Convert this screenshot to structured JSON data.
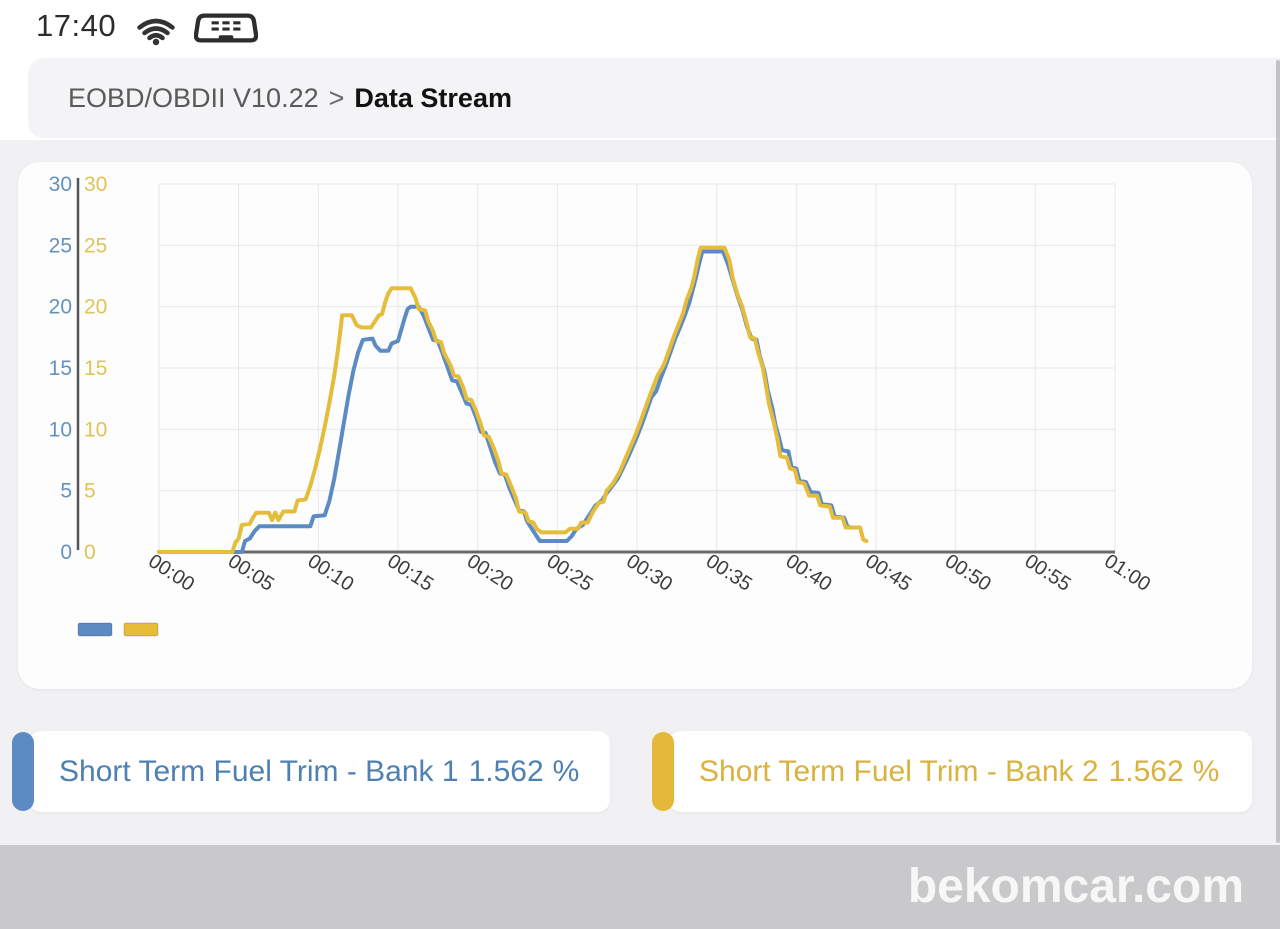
{
  "status_bar": {
    "time": "17:40",
    "icons": [
      "wifi-icon",
      "obd-connector-icon"
    ]
  },
  "breadcrumb": {
    "path": "EOBD/OBDII V10.22",
    "separator": ">",
    "current": "Data Stream"
  },
  "chart_data": {
    "type": "line",
    "title": "",
    "x_axis": {
      "unit": "mm:ss",
      "tick_labels": [
        "00:00",
        "00:05",
        "00:10",
        "00:15",
        "00:20",
        "00:25",
        "00:30",
        "00:35",
        "00:40",
        "00:45",
        "00:50",
        "00:55",
        "01:00"
      ],
      "tick_seconds": [
        0,
        5,
        10,
        15,
        20,
        25,
        30,
        35,
        40,
        45,
        50,
        55,
        60
      ],
      "max_seconds": 60,
      "label_rotation_deg": 33,
      "label_color": "#3c3c3c"
    },
    "y_axis": {
      "min": 0,
      "max": 30,
      "ticks": [
        0,
        5,
        10,
        15,
        20,
        25,
        30
      ],
      "dual_labels": true,
      "left_label_color": "#6292bd",
      "right_label_color": "#dfc455"
    },
    "grid": {
      "show": true,
      "color": "#e8e8eb"
    },
    "axis_line_color": "#6a6a6a",
    "legend": {
      "position": "bottom-left"
    },
    "series": [
      {
        "name": "Short Term Fuel Trim - Bank 1",
        "color": "#5b8bc2",
        "points": [
          [
            0,
            0
          ],
          [
            5.2,
            0
          ],
          [
            5.4,
            0.9
          ],
          [
            5.7,
            1.1
          ],
          [
            6.0,
            1.7
          ],
          [
            6.3,
            2.1
          ],
          [
            9.5,
            2.1
          ],
          [
            9.7,
            2.9
          ],
          [
            10.4,
            3.0
          ],
          [
            10.7,
            4.2
          ],
          [
            11.0,
            6.0
          ],
          [
            11.3,
            8.2
          ],
          [
            11.6,
            10.5
          ],
          [
            11.9,
            12.8
          ],
          [
            12.2,
            14.8
          ],
          [
            12.5,
            16.3
          ],
          [
            12.8,
            17.3
          ],
          [
            13.4,
            17.4
          ],
          [
            13.6,
            16.8
          ],
          [
            13.9,
            16.4
          ],
          [
            14.4,
            16.4
          ],
          [
            14.6,
            17.0
          ],
          [
            15.0,
            17.2
          ],
          [
            15.2,
            18.1
          ],
          [
            15.4,
            19.0
          ],
          [
            15.6,
            19.8
          ],
          [
            15.8,
            20.0
          ],
          [
            16.3,
            20.0
          ],
          [
            16.6,
            19.3
          ],
          [
            16.9,
            18.3
          ],
          [
            17.2,
            17.3
          ],
          [
            17.5,
            17.2
          ],
          [
            17.8,
            16.2
          ],
          [
            18.1,
            15.1
          ],
          [
            18.4,
            14.0
          ],
          [
            18.7,
            13.9
          ],
          [
            19.0,
            13.0
          ],
          [
            19.3,
            12.1
          ],
          [
            19.6,
            12.0
          ],
          [
            19.9,
            11.0
          ],
          [
            20.2,
            9.8
          ],
          [
            20.5,
            9.7
          ],
          [
            20.8,
            8.5
          ],
          [
            21.1,
            7.3
          ],
          [
            21.4,
            6.4
          ],
          [
            21.7,
            6.3
          ],
          [
            22.0,
            5.2
          ],
          [
            22.3,
            4.3
          ],
          [
            22.6,
            3.4
          ],
          [
            22.9,
            3.3
          ],
          [
            23.1,
            2.5
          ],
          [
            23.4,
            1.9
          ],
          [
            23.7,
            1.3
          ],
          [
            23.9,
            0.9
          ],
          [
            25.6,
            0.9
          ],
          [
            25.9,
            1.3
          ],
          [
            26.2,
            1.9
          ],
          [
            26.6,
            2.2
          ],
          [
            27.0,
            3.0
          ],
          [
            27.4,
            3.8
          ],
          [
            27.8,
            4.2
          ],
          [
            28.1,
            4.8
          ],
          [
            28.4,
            5.3
          ],
          [
            28.8,
            6.0
          ],
          [
            29.1,
            6.8
          ],
          [
            29.4,
            7.6
          ],
          [
            29.7,
            8.5
          ],
          [
            30.0,
            9.4
          ],
          [
            30.3,
            10.4
          ],
          [
            30.6,
            11.5
          ],
          [
            30.9,
            12.6
          ],
          [
            31.2,
            13.1
          ],
          [
            31.5,
            14.2
          ],
          [
            31.8,
            15.2
          ],
          [
            32.1,
            16.3
          ],
          [
            32.4,
            17.4
          ],
          [
            32.7,
            18.3
          ],
          [
            33.0,
            19.3
          ],
          [
            33.3,
            20.4
          ],
          [
            33.5,
            21.4
          ],
          [
            33.7,
            22.4
          ],
          [
            33.9,
            23.5
          ],
          [
            34.1,
            24.5
          ],
          [
            35.4,
            24.5
          ],
          [
            35.7,
            23.5
          ],
          [
            36.0,
            22.2
          ],
          [
            36.3,
            20.9
          ],
          [
            36.6,
            19.8
          ],
          [
            36.9,
            18.4
          ],
          [
            37.2,
            17.4
          ],
          [
            37.5,
            17.3
          ],
          [
            37.7,
            16.0
          ],
          [
            38.0,
            14.7
          ],
          [
            38.2,
            13.2
          ],
          [
            38.5,
            11.7
          ],
          [
            38.7,
            10.3
          ],
          [
            38.9,
            9.4
          ],
          [
            39.1,
            8.3
          ],
          [
            39.5,
            8.2
          ],
          [
            39.7,
            6.9
          ],
          [
            40.0,
            6.8
          ],
          [
            40.2,
            5.8
          ],
          [
            40.6,
            5.7
          ],
          [
            40.9,
            4.9
          ],
          [
            41.4,
            4.8
          ],
          [
            41.6,
            3.9
          ],
          [
            42.2,
            3.8
          ],
          [
            42.4,
            2.9
          ],
          [
            43.0,
            2.8
          ],
          [
            43.2,
            2.1
          ],
          [
            43.4,
            2.0
          ]
        ]
      },
      {
        "name": "Short Term Fuel Trim - Bank 2",
        "color": "#e6bc3b",
        "points": [
          [
            0,
            0
          ],
          [
            4.6,
            0
          ],
          [
            4.8,
            0.8
          ],
          [
            5.0,
            1.1
          ],
          [
            5.2,
            2.2
          ],
          [
            5.7,
            2.3
          ],
          [
            5.9,
            2.8
          ],
          [
            6.1,
            3.2
          ],
          [
            6.9,
            3.2
          ],
          [
            7.1,
            2.6
          ],
          [
            7.3,
            3.2
          ],
          [
            7.5,
            2.6
          ],
          [
            7.8,
            3.3
          ],
          [
            8.5,
            3.3
          ],
          [
            8.7,
            4.2
          ],
          [
            9.2,
            4.3
          ],
          [
            9.5,
            5.4
          ],
          [
            9.8,
            6.8
          ],
          [
            10.1,
            8.4
          ],
          [
            10.4,
            10.2
          ],
          [
            10.7,
            12.2
          ],
          [
            11.0,
            14.4
          ],
          [
            11.2,
            16.2
          ],
          [
            11.4,
            18.2
          ],
          [
            11.5,
            19.3
          ],
          [
            12.1,
            19.3
          ],
          [
            12.4,
            18.5
          ],
          [
            12.7,
            18.3
          ],
          [
            13.3,
            18.3
          ],
          [
            13.6,
            18.9
          ],
          [
            13.8,
            19.3
          ],
          [
            14.0,
            19.4
          ],
          [
            14.2,
            20.4
          ],
          [
            14.4,
            21.1
          ],
          [
            14.6,
            21.5
          ],
          [
            15.8,
            21.5
          ],
          [
            16.1,
            20.7
          ],
          [
            16.3,
            19.8
          ],
          [
            16.7,
            19.7
          ],
          [
            16.9,
            18.8
          ],
          [
            17.2,
            18.0
          ],
          [
            17.4,
            17.2
          ],
          [
            17.7,
            17.1
          ],
          [
            17.9,
            16.2
          ],
          [
            18.3,
            15.2
          ],
          [
            18.5,
            14.4
          ],
          [
            18.8,
            14.3
          ],
          [
            19.1,
            13.4
          ],
          [
            19.3,
            12.5
          ],
          [
            19.6,
            12.4
          ],
          [
            19.9,
            11.5
          ],
          [
            20.2,
            10.4
          ],
          [
            20.4,
            9.5
          ],
          [
            20.7,
            9.4
          ],
          [
            21.0,
            8.5
          ],
          [
            21.3,
            7.4
          ],
          [
            21.5,
            6.4
          ],
          [
            21.8,
            6.3
          ],
          [
            22.1,
            5.4
          ],
          [
            22.4,
            4.4
          ],
          [
            22.6,
            3.3
          ],
          [
            23.0,
            3.2
          ],
          [
            23.2,
            2.5
          ],
          [
            23.5,
            2.4
          ],
          [
            23.7,
            1.9
          ],
          [
            24.0,
            1.6
          ],
          [
            25.5,
            1.6
          ],
          [
            25.8,
            1.9
          ],
          [
            26.3,
            1.9
          ],
          [
            26.5,
            2.4
          ],
          [
            26.9,
            2.4
          ],
          [
            27.2,
            3.2
          ],
          [
            27.6,
            4.0
          ],
          [
            27.9,
            4.1
          ],
          [
            28.1,
            5.0
          ],
          [
            28.5,
            5.6
          ],
          [
            28.9,
            6.5
          ],
          [
            29.2,
            7.4
          ],
          [
            29.5,
            8.3
          ],
          [
            29.8,
            9.2
          ],
          [
            30.1,
            10.2
          ],
          [
            30.4,
            11.3
          ],
          [
            30.7,
            12.4
          ],
          [
            31.0,
            13.4
          ],
          [
            31.3,
            14.4
          ],
          [
            31.7,
            15.3
          ],
          [
            32.0,
            16.4
          ],
          [
            32.3,
            17.5
          ],
          [
            32.6,
            18.5
          ],
          [
            32.9,
            19.5
          ],
          [
            33.1,
            20.5
          ],
          [
            33.4,
            21.5
          ],
          [
            33.6,
            22.5
          ],
          [
            33.8,
            23.8
          ],
          [
            34.0,
            24.8
          ],
          [
            35.5,
            24.8
          ],
          [
            35.8,
            23.8
          ],
          [
            36.0,
            22.4
          ],
          [
            36.3,
            21.0
          ],
          [
            36.6,
            20.0
          ],
          [
            36.9,
            18.6
          ],
          [
            37.1,
            17.5
          ],
          [
            37.4,
            17.4
          ],
          [
            37.6,
            16.3
          ],
          [
            37.9,
            15.0
          ],
          [
            38.1,
            13.5
          ],
          [
            38.3,
            12.0
          ],
          [
            38.6,
            10.5
          ],
          [
            38.8,
            9.3
          ],
          [
            39.0,
            7.8
          ],
          [
            39.4,
            7.7
          ],
          [
            39.6,
            6.8
          ],
          [
            39.9,
            6.7
          ],
          [
            40.1,
            5.7
          ],
          [
            40.5,
            5.6
          ],
          [
            40.8,
            4.6
          ],
          [
            41.3,
            4.6
          ],
          [
            41.5,
            3.8
          ],
          [
            42.1,
            3.7
          ],
          [
            42.3,
            2.8
          ],
          [
            42.9,
            2.8
          ],
          [
            43.1,
            2.0
          ],
          [
            44.0,
            2.0
          ],
          [
            44.2,
            1.0
          ],
          [
            44.4,
            0.9
          ]
        ]
      }
    ]
  },
  "readouts": [
    {
      "label": "Short Term Fuel Trim - Bank 1",
      "value": "1.562",
      "unit": "%",
      "accent_color": "#5b8bc2",
      "text_color": "#4e81b1"
    },
    {
      "label": "Short Term Fuel Trim - Bank 2",
      "value": "1.562",
      "unit": "%",
      "accent_color": "#e5b83a",
      "text_color": "#d9b23f"
    }
  ],
  "watermark": "bekomcar.com"
}
